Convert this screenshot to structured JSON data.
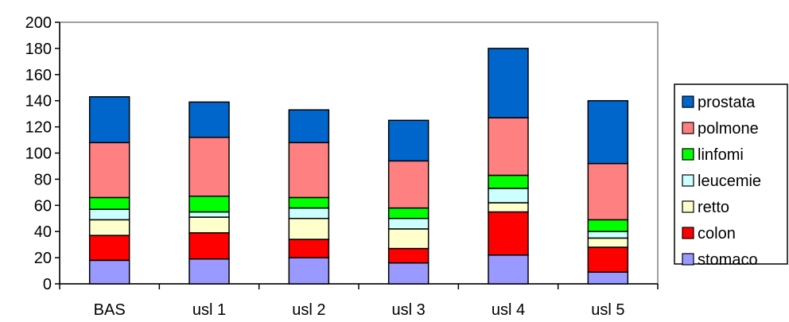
{
  "chart_data": {
    "type": "bar",
    "stacked": true,
    "categories": [
      "BAS",
      "usl 1",
      "usl 2",
      "usl 3",
      "usl 4",
      "usl 5"
    ],
    "series": [
      {
        "name": "stomaco",
        "color": "#9999ff",
        "values": [
          18,
          19,
          20,
          16,
          22,
          9
        ]
      },
      {
        "name": "colon",
        "color": "#ff0000",
        "values": [
          19,
          20,
          14,
          11,
          33,
          19
        ]
      },
      {
        "name": "retto",
        "color": "#ffffcc",
        "values": [
          12,
          12,
          16,
          15,
          7,
          7
        ]
      },
      {
        "name": "leucemie",
        "color": "#ccffff",
        "values": [
          8,
          4,
          8,
          8,
          11,
          5
        ]
      },
      {
        "name": "linfomi",
        "color": "#00ff00",
        "values": [
          9,
          12,
          8,
          8,
          10,
          9
        ]
      },
      {
        "name": "polmone",
        "color": "#ff8080",
        "values": [
          42,
          45,
          42,
          36,
          44,
          43
        ]
      },
      {
        "name": "prostata",
        "color": "#0066cc",
        "values": [
          35,
          27,
          25,
          31,
          53,
          48
        ]
      }
    ],
    "yticks": [
      0,
      20,
      40,
      60,
      80,
      100,
      120,
      140,
      160,
      180,
      200
    ],
    "ylim": [
      0,
      200
    ],
    "title": "",
    "xlabel": "",
    "ylabel": "",
    "grid": false,
    "legend": "right"
  }
}
